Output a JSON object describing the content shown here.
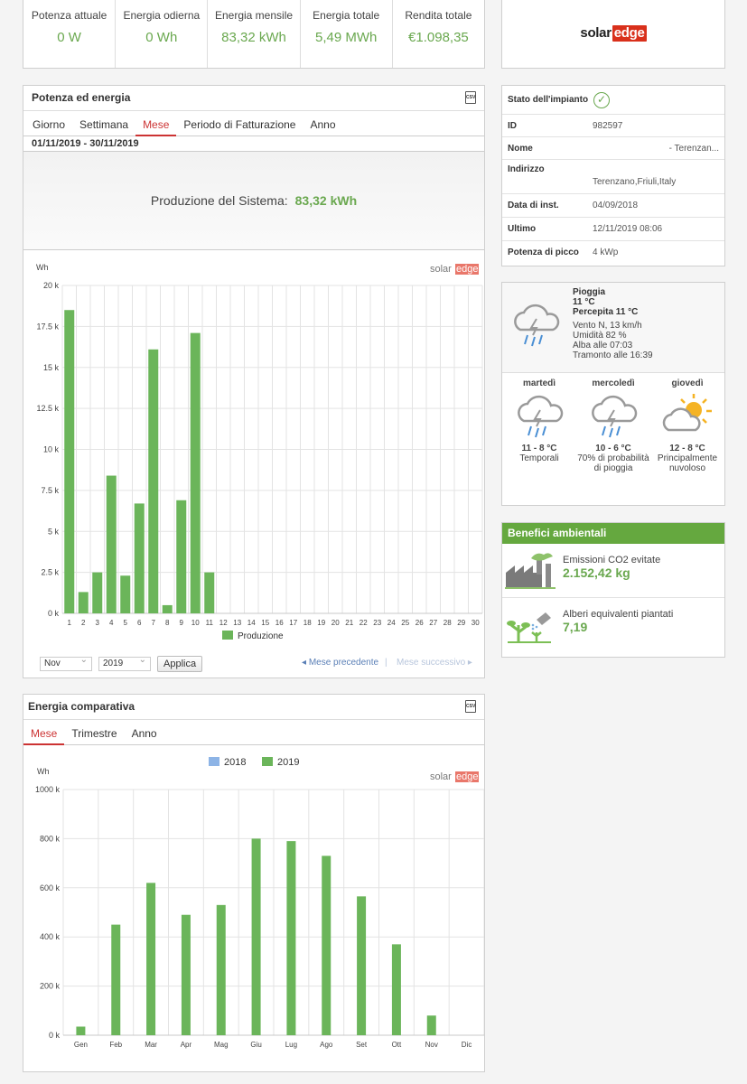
{
  "stats": [
    {
      "label": "Potenza attuale",
      "value": "0 W"
    },
    {
      "label": "Energia odierna",
      "value": "0 Wh"
    },
    {
      "label": "Energia mensile",
      "value": "83,32 kWh"
    },
    {
      "label": "Energia totale",
      "value": "5,49 MWh"
    },
    {
      "label": "Rendita totale",
      "value": "€1.098,35"
    }
  ],
  "brand": {
    "solar": "solar",
    "edge": "edge"
  },
  "power_energy": {
    "title": "Potenza ed energia",
    "csv_icon": "csv-icon",
    "tabs": [
      "Giorno",
      "Settimana",
      "Mese",
      "Periodo di Fatturazione",
      "Anno"
    ],
    "active_tab": "Mese",
    "date_range": "01/11/2019 - 30/11/2019",
    "production_label": "Produzione del Sistema:",
    "production_value": "83,32 kWh",
    "month_select": "Nov",
    "year_select": "2019",
    "apply_label": "Applica",
    "prev_label": "Mese precedente",
    "next_label": "Mese successivo",
    "separator": "|"
  },
  "comparative": {
    "title": "Energia comparativa",
    "tabs": [
      "Mese",
      "Trimestre",
      "Anno"
    ],
    "active_tab": "Mese"
  },
  "status": {
    "title": "Stato dell'impianto",
    "rows": [
      {
        "key": "ID",
        "value": "982597"
      },
      {
        "key": "Nome",
        "value": "- Terenzan..."
      },
      {
        "key": "Indirizzo",
        "value": "Terenzano,Friuli,Italy"
      },
      {
        "key": "Data di inst.",
        "value": "04/09/2018"
      },
      {
        "key": "Ultimo",
        "value": "12/11/2019 08:06"
      },
      {
        "key": "Potenza di picco",
        "value": "4 kWp"
      }
    ]
  },
  "weather": {
    "now": {
      "condition": "Pioggia",
      "temp": "11 °C",
      "feels": "Percepita 11 °C",
      "wind": "Vento N, 13 km/h",
      "humidity": "Umidità 82 %",
      "sunrise": "Alba alle 07:03",
      "sunset": "Tramonto alle 16:39",
      "icon": "rain-cloud-icon"
    },
    "days": [
      {
        "name": "martedì",
        "temp": "11 - 8 °C",
        "desc": [
          "Temporali"
        ],
        "icon": "storm-cloud-icon"
      },
      {
        "name": "mercoledì",
        "temp": "10 - 6 °C",
        "desc": [
          "70% di probabilità",
          "di pioggia"
        ],
        "icon": "rain-cloud-icon"
      },
      {
        "name": "giovedì",
        "temp": "12 - 8 °C",
        "desc": [
          "Principalmente",
          "nuvoloso"
        ],
        "icon": "sun-cloud-icon"
      }
    ]
  },
  "benefits": {
    "title": "Benefici ambientali",
    "items": [
      {
        "label": "Emissioni CO2 evitate",
        "value": "2.152,42 kg",
        "icon": "factory-icon"
      },
      {
        "label": "Alberi equivalenti piantati",
        "value": "7,19",
        "icon": "tree-icon"
      }
    ]
  },
  "chart_data": [
    {
      "type": "bar",
      "ylabel": "Wh",
      "ylim": [
        0,
        20000
      ],
      "yticks": [
        "0 k",
        "2.5 k",
        "5 k",
        "7.5 k",
        "10 k",
        "12.5 k",
        "15 k",
        "17.5 k",
        "20 k"
      ],
      "categories": [
        "1",
        "2",
        "3",
        "4",
        "5",
        "6",
        "7",
        "8",
        "9",
        "10",
        "11",
        "12",
        "13",
        "14",
        "15",
        "16",
        "17",
        "18",
        "19",
        "20",
        "21",
        "22",
        "23",
        "24",
        "25",
        "26",
        "27",
        "28",
        "29",
        "30"
      ],
      "series": [
        {
          "name": "Produzione",
          "color": "#6bb55a",
          "values": [
            18500,
            1300,
            2500,
            8400,
            2300,
            6700,
            16100,
            500,
            6900,
            17100,
            2500,
            null,
            null,
            null,
            null,
            null,
            null,
            null,
            null,
            null,
            null,
            null,
            null,
            null,
            null,
            null,
            null,
            null,
            null,
            null
          ]
        }
      ],
      "legend": "bottom"
    },
    {
      "type": "bar",
      "ylabel": "Wh",
      "ylim": [
        0,
        1000000
      ],
      "yticks": [
        "0 k",
        "200 k",
        "400 k",
        "600 k",
        "800 k",
        "1000 k"
      ],
      "categories": [
        "Gen",
        "Feb",
        "Mar",
        "Apr",
        "Mag",
        "Giu",
        "Lug",
        "Ago",
        "Set",
        "Ott",
        "Nov",
        "Dic"
      ],
      "series": [
        {
          "name": "2018",
          "color": "#8db4e6",
          "values": [
            null,
            null,
            null,
            null,
            null,
            null,
            null,
            null,
            null,
            null,
            null,
            null
          ]
        },
        {
          "name": "2019",
          "color": "#6bb55a",
          "values": [
            35000,
            450000,
            620000,
            490000,
            530000,
            800000,
            790000,
            730000,
            565000,
            370000,
            80000,
            null
          ]
        }
      ],
      "legend": "top"
    }
  ]
}
